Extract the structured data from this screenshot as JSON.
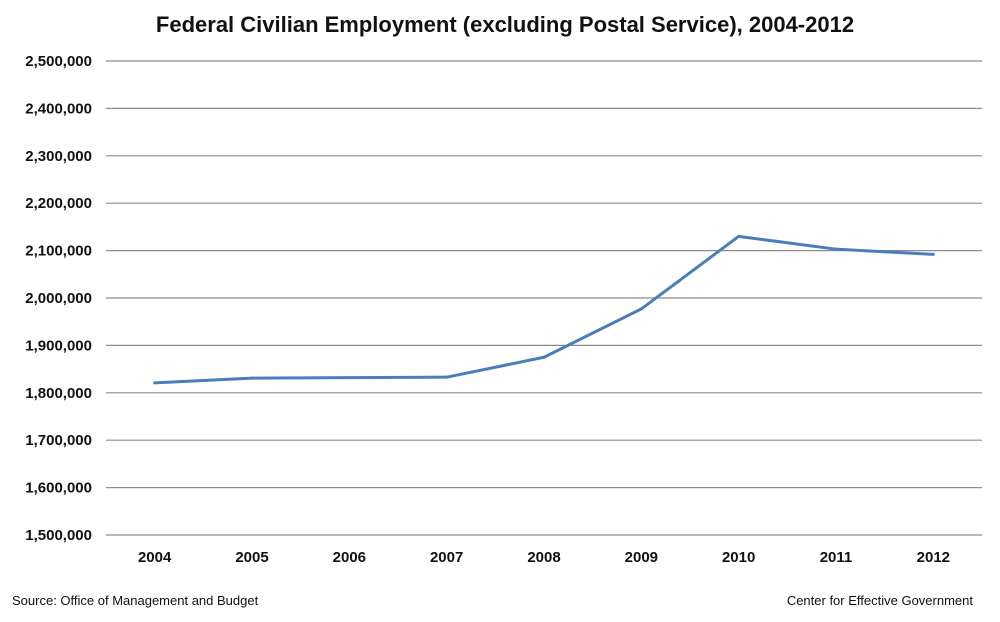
{
  "chart_data": {
    "type": "line",
    "title": "Federal Civilian Employment (excluding Postal Service), 2004-2012",
    "xlabel": "",
    "ylabel": "",
    "categories": [
      "2004",
      "2005",
      "2006",
      "2007",
      "2008",
      "2009",
      "2010",
      "2011",
      "2012"
    ],
    "series": [
      {
        "name": "Federal civilian employment",
        "color": "#4a7ebb",
        "values": [
          1821000,
          1831000,
          1832000,
          1833000,
          1875000,
          1977000,
          2130000,
          2103000,
          2092000
        ]
      }
    ],
    "ylim": [
      1500000,
      2500000
    ],
    "yticks": [
      1500000,
      1600000,
      1700000,
      1800000,
      1900000,
      2000000,
      2100000,
      2200000,
      2300000,
      2400000,
      2500000
    ],
    "ytick_labels": [
      "1,500,000",
      "1,600,000",
      "1,700,000",
      "1,800,000",
      "1,900,000",
      "2,000,000",
      "2,100,000",
      "2,200,000",
      "2,300,000",
      "2,400,000",
      "2,500,000"
    ],
    "grid": true,
    "legend": "none"
  },
  "footer": {
    "source": "Source: Office of Management and Budget",
    "credit": "Center for Effective Government"
  }
}
